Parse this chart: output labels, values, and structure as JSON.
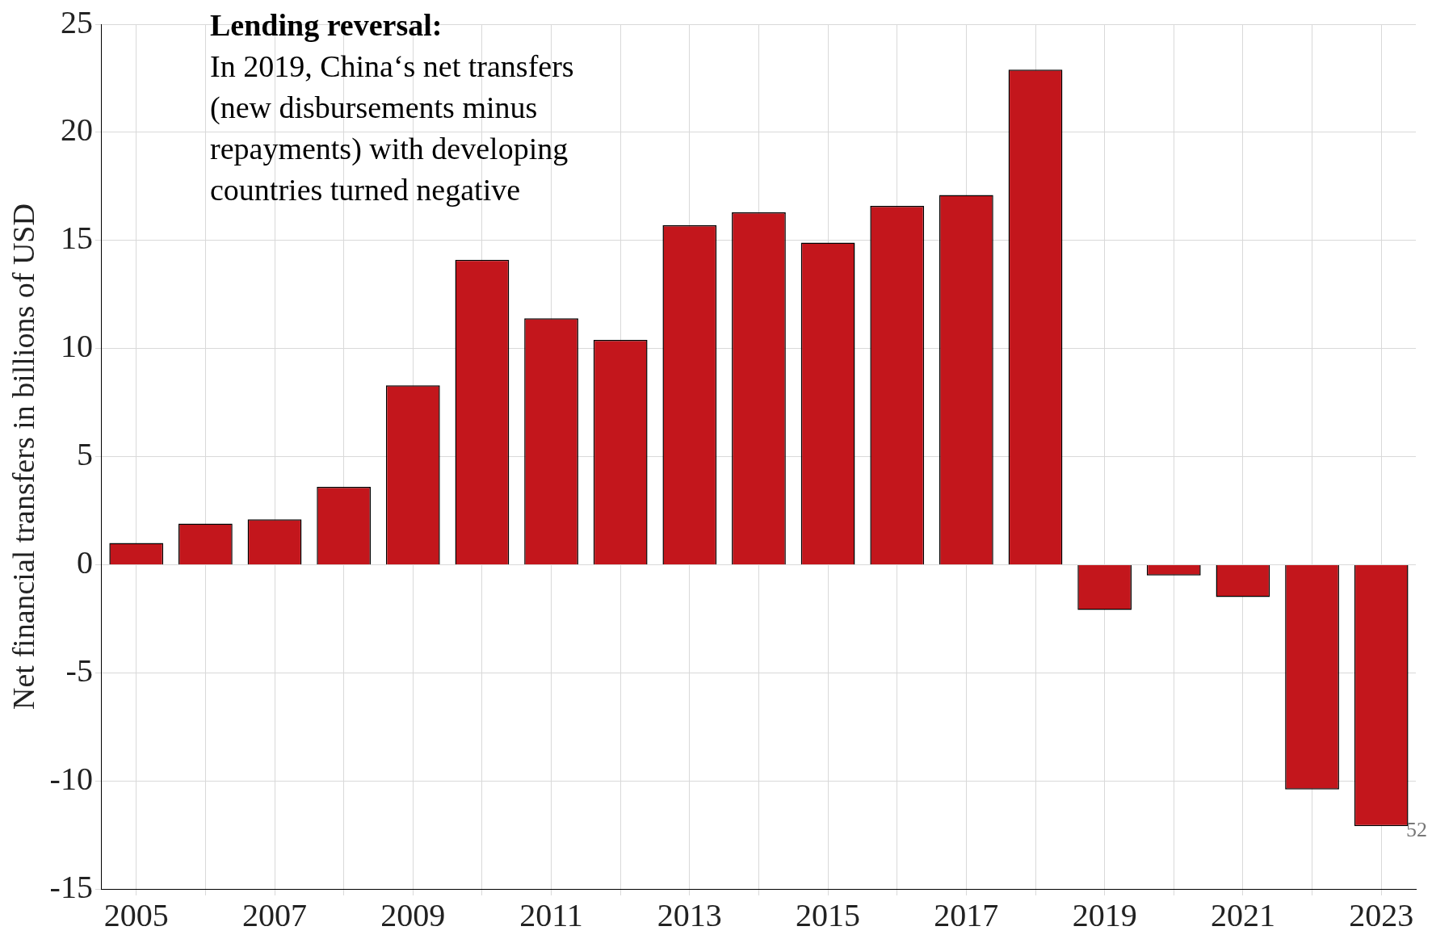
{
  "chart_data": {
    "type": "bar",
    "ylabel": "Net financial transfers in billions of USD",
    "categories": [
      "2005",
      null,
      "2007",
      null,
      "2009",
      null,
      "2011",
      null,
      "2013",
      null,
      "2015",
      null,
      "2017",
      null,
      "2019",
      null,
      "2021",
      null,
      "2023"
    ],
    "values": [
      1.0,
      1.9,
      2.1,
      3.6,
      8.3,
      14.1,
      11.4,
      10.4,
      15.7,
      16.3,
      14.9,
      16.6,
      17.1,
      22.9,
      -2.1,
      -0.5,
      -1.5,
      -10.4,
      -12.1
    ],
    "color": "#c3161c",
    "ylim": [
      -15,
      25
    ],
    "yticks": [
      -15,
      -10,
      -5,
      0,
      5,
      10,
      15,
      20,
      25
    ],
    "grid": true,
    "annotations": [
      "Lending reversal:",
      "In 2019, China‘s net transfers (new disbursements minus repayments) with developing countries turned negative",
      "52"
    ]
  }
}
